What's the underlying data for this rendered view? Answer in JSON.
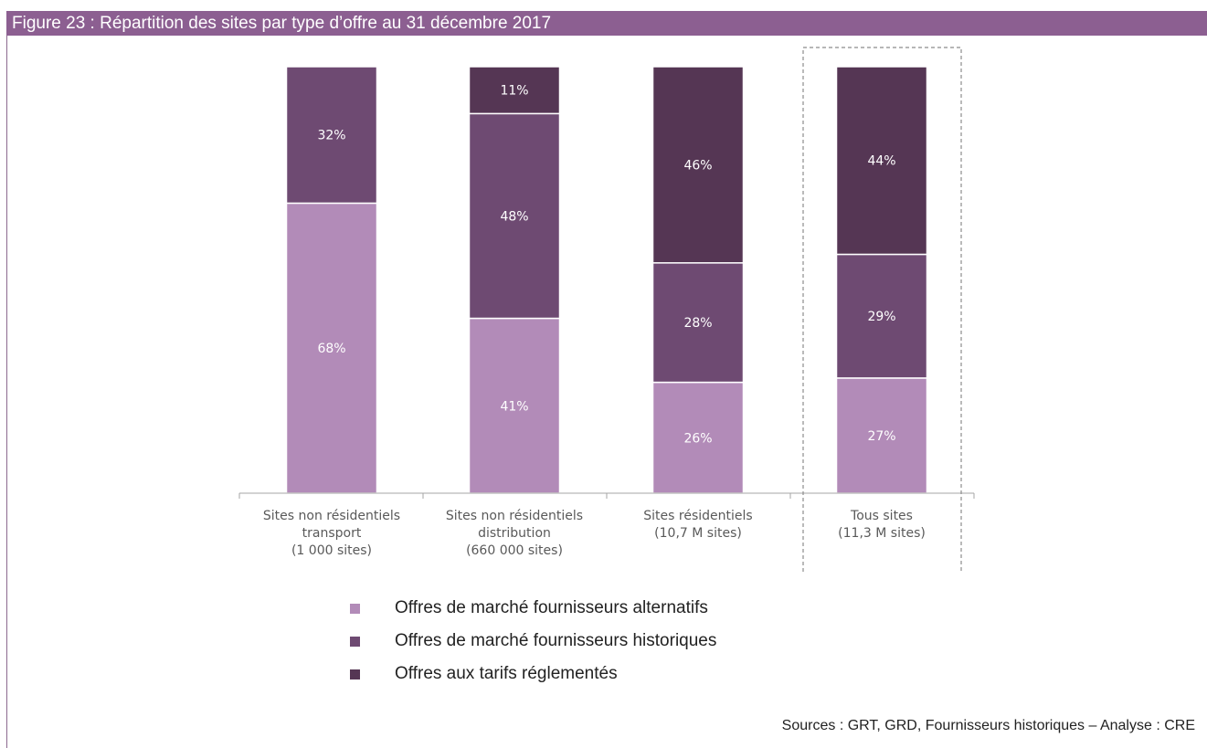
{
  "header": {
    "title": "Figure 23 : Répartition des sites par type d’offre au 31 décembre 2017"
  },
  "chart_data": {
    "type": "bar",
    "stacked": true,
    "normalized": true,
    "categories": [
      [
        "Sites non résidentiels",
        "transport",
        "(1 000 sites)"
      ],
      [
        "Sites non résidentiels",
        "distribution",
        "(660 000 sites)"
      ],
      [
        "Sites résidentiels",
        "(10,7 M sites)"
      ],
      [
        "Tous sites",
        "(11,3 M sites)"
      ]
    ],
    "series": [
      {
        "name": "Offres de marché fournisseurs alternatifs",
        "color": "#b28bb8",
        "values": [
          68,
          41,
          26,
          27
        ]
      },
      {
        "name": "Offres de marché fournisseurs historiques",
        "color": "#6e4a72",
        "values": [
          32,
          48,
          28,
          29
        ]
      },
      {
        "name": "Offres aux tarifs réglementés",
        "color": "#553654",
        "values": [
          0,
          11,
          46,
          44
        ]
      }
    ],
    "value_suffix": "%",
    "ylim": [
      0,
      100
    ],
    "legend_position": "bottom",
    "highlight_category_index": 3,
    "grid": false
  },
  "legend": {
    "items": [
      {
        "label": "Offres de marché fournisseurs alternatifs",
        "color": "#b28bb8"
      },
      {
        "label": "Offres de marché fournisseurs historiques",
        "color": "#6e4a72"
      },
      {
        "label": "Offres aux tarifs réglementés",
        "color": "#553654"
      }
    ]
  },
  "footer": {
    "source": "Sources : GRT, GRD, Fournisseurs historiques – Analyse : CRE"
  }
}
